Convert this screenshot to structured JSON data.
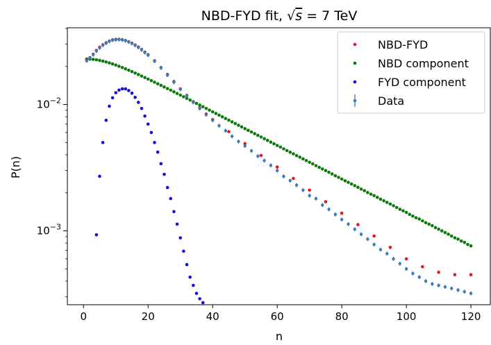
{
  "chart_data": {
    "type": "scatter",
    "title": "NBD-FYD fit, √s = 7 TeV",
    "title_main": "NBD-FYD fit, ",
    "title_sqrt_symbol": "√",
    "title_sqrt_arg": "s",
    "title_rest": " = 7 TeV",
    "xlabel": "n",
    "ylabel": "P(n)",
    "xlim": [
      -5,
      126
    ],
    "ylim": [
      0.00026,
      0.0405
    ],
    "yscale": "log",
    "grid": false,
    "legend_position": "top-right",
    "x_ticks": [
      0,
      20,
      40,
      60,
      80,
      100,
      120
    ],
    "x_tick_labels": [
      "0",
      "20",
      "40",
      "60",
      "80",
      "100",
      "120"
    ],
    "y_major_ticks": [
      0.001,
      0.01
    ],
    "y_tick_labels": [
      {
        "base": "10",
        "exp": "−3"
      },
      {
        "base": "10",
        "exp": "−2"
      }
    ],
    "y_minor_ticks": [
      0.0003,
      0.0004,
      0.0005,
      0.0006,
      0.0007,
      0.0008,
      0.0009,
      0.002,
      0.003,
      0.004,
      0.005,
      0.006,
      0.007,
      0.008,
      0.009,
      0.02,
      0.03,
      0.04
    ],
    "series": [
      {
        "name": "NBD-FYD",
        "color": "#e8141c",
        "marker": "dot",
        "x": [
          1,
          2,
          3,
          4,
          5,
          6,
          7,
          8,
          9,
          10,
          11,
          12,
          13,
          14,
          15,
          16,
          17,
          18,
          19,
          20,
          22,
          24,
          26,
          28,
          30,
          32,
          34,
          36,
          38,
          40,
          45,
          50,
          55,
          60,
          65,
          70,
          75,
          80,
          85,
          90,
          95,
          100,
          105,
          110,
          115,
          120
        ],
        "y": [
          0.0225,
          0.0235,
          0.025,
          0.0268,
          0.0284,
          0.0297,
          0.0308,
          0.0318,
          0.0325,
          0.0328,
          0.0328,
          0.0326,
          0.0321,
          0.0314,
          0.0306,
          0.0296,
          0.0285,
          0.0273,
          0.026,
          0.0248,
          0.0222,
          0.0196,
          0.0173,
          0.0152,
          0.0133,
          0.0118,
          0.0105,
          0.0094,
          0.0084,
          0.0076,
          0.0061,
          0.0049,
          0.00395,
          0.0032,
          0.0026,
          0.0021,
          0.0017,
          0.00138,
          0.00112,
          0.00091,
          0.00074,
          0.0006,
          0.00052,
          0.00047,
          0.00045,
          0.00045
        ]
      },
      {
        "name": "NBD component",
        "color": "#0a7a0a",
        "marker": "dot",
        "x": [
          1,
          2,
          3,
          4,
          5,
          6,
          7,
          8,
          9,
          10,
          11,
          12,
          13,
          14,
          15,
          16,
          17,
          18,
          19,
          20,
          21,
          22,
          23,
          24,
          25,
          26,
          27,
          28,
          29,
          30,
          31,
          32,
          33,
          34,
          35,
          36,
          37,
          38,
          39,
          40,
          41,
          42,
          43,
          44,
          45,
          46,
          47,
          48,
          49,
          50,
          51,
          52,
          53,
          54,
          55,
          56,
          57,
          58,
          59,
          60,
          61,
          62,
          63,
          64,
          65,
          66,
          67,
          68,
          69,
          70,
          71,
          72,
          73,
          74,
          75,
          76,
          77,
          78,
          79,
          80,
          81,
          82,
          83,
          84,
          85,
          86,
          87,
          88,
          89,
          90,
          91,
          92,
          93,
          94,
          95,
          96,
          97,
          98,
          99,
          100,
          101,
          102,
          103,
          104,
          105,
          106,
          107,
          108,
          109,
          110,
          111,
          112,
          113,
          114,
          115,
          116,
          117,
          118,
          119,
          120
        ],
        "y": [
          0.0229,
          0.02287,
          0.02276,
          0.02259,
          0.02235,
          0.02206,
          0.02172,
          0.02135,
          0.02095,
          0.02052,
          0.02008,
          0.01962,
          0.01915,
          0.01868,
          0.01821,
          0.01774,
          0.01727,
          0.0168,
          0.01635,
          0.0159,
          0.01545,
          0.01502,
          0.01459,
          0.01418,
          0.01377,
          0.01337,
          0.01298,
          0.0126,
          0.01223,
          0.01187,
          0.01152,
          0.01118,
          0.01085,
          0.01052,
          0.01021,
          0.0099,
          0.0096,
          0.00932,
          0.00903,
          0.00876,
          0.0085,
          0.00824,
          0.00799,
          0.00775,
          0.00752,
          0.00729,
          0.00707,
          0.00685,
          0.00665,
          0.00644,
          0.00625,
          0.00606,
          0.00588,
          0.0057,
          0.00553,
          0.00536,
          0.0052,
          0.00504,
          0.00489,
          0.00474,
          0.0046,
          0.00446,
          0.00432,
          0.00419,
          0.00407,
          0.00394,
          0.00383,
          0.00371,
          0.0036,
          0.00349,
          0.00339,
          0.00328,
          0.00318,
          0.00309,
          0.003,
          0.00291,
          0.00282,
          0.00273,
          0.00265,
          0.00257,
          0.00249,
          0.00242,
          0.00235,
          0.00228,
          0.00221,
          0.00214,
          0.00208,
          0.00201,
          0.00195,
          0.0019,
          0.00184,
          0.00178,
          0.00173,
          0.00168,
          0.00163,
          0.00158,
          0.00153,
          0.00148,
          0.00144,
          0.0014,
          0.00135,
          0.00131,
          0.00127,
          0.00124,
          0.0012,
          0.00116,
          0.00113,
          0.0011,
          0.00106,
          0.00103,
          0.001,
          0.00097,
          0.00094,
          0.00091,
          0.00088,
          0.00086,
          0.00083,
          0.00081,
          0.00078,
          0.00076
        ]
      },
      {
        "name": "FYD component",
        "color": "#1010e0",
        "marker": "dot",
        "x": [
          4,
          5,
          6,
          7,
          8,
          9,
          10,
          11,
          12,
          13,
          14,
          15,
          16,
          17,
          18,
          19,
          20,
          21,
          22,
          23,
          24,
          25,
          26,
          27,
          28,
          29,
          30,
          31,
          32,
          33,
          34,
          35,
          36,
          37
        ],
        "y": [
          0.00093,
          0.0027,
          0.005,
          0.0075,
          0.0097,
          0.0113,
          0.0124,
          0.013,
          0.0133,
          0.0133,
          0.0129,
          0.0123,
          0.0114,
          0.0104,
          0.0093,
          0.0081,
          0.007,
          0.006,
          0.005,
          0.0042,
          0.0034,
          0.0028,
          0.0022,
          0.0018,
          0.00142,
          0.00113,
          0.00088,
          0.00069,
          0.00054,
          0.00043,
          0.00037,
          0.00032,
          0.00029,
          0.00027
        ]
      },
      {
        "name": "Data",
        "color": "#3b7bbf",
        "marker": "errorbar",
        "x": [
          1,
          2,
          3,
          4,
          5,
          6,
          7,
          8,
          9,
          10,
          11,
          12,
          13,
          14,
          15,
          16,
          17,
          18,
          19,
          20,
          22,
          24,
          26,
          28,
          30,
          32,
          34,
          36,
          38,
          40,
          42,
          44,
          46,
          48,
          50,
          52,
          54,
          56,
          58,
          60,
          62,
          64,
          66,
          68,
          70,
          72,
          74,
          76,
          78,
          80,
          82,
          84,
          86,
          88,
          90,
          92,
          94,
          96,
          98,
          100,
          102,
          104,
          106,
          108,
          110,
          112,
          114,
          116,
          118,
          120
        ],
        "y": [
          0.0222,
          0.0233,
          0.0248,
          0.0265,
          0.0281,
          0.0295,
          0.0306,
          0.0316,
          0.0323,
          0.0326,
          0.0327,
          0.0325,
          0.032,
          0.0313,
          0.0304,
          0.0294,
          0.0283,
          0.0271,
          0.0258,
          0.0246,
          0.022,
          0.0195,
          0.0171,
          0.015,
          0.0132,
          0.0117,
          0.0104,
          0.0093,
          0.0083,
          0.0075,
          0.0068,
          0.0062,
          0.0056,
          0.0051,
          0.0047,
          0.0043,
          0.0039,
          0.0036,
          0.0033,
          0.003,
          0.0027,
          0.0025,
          0.0023,
          0.0021,
          0.0019,
          0.0018,
          0.0016,
          0.00148,
          0.00135,
          0.00123,
          0.00113,
          0.00103,
          0.00094,
          0.00086,
          0.00078,
          0.00071,
          0.00066,
          0.0006,
          0.00055,
          0.0005,
          0.00046,
          0.00043,
          0.0004,
          0.00038,
          0.00037,
          0.00036,
          0.00035,
          0.00034,
          0.00033,
          0.00032
        ]
      }
    ]
  }
}
